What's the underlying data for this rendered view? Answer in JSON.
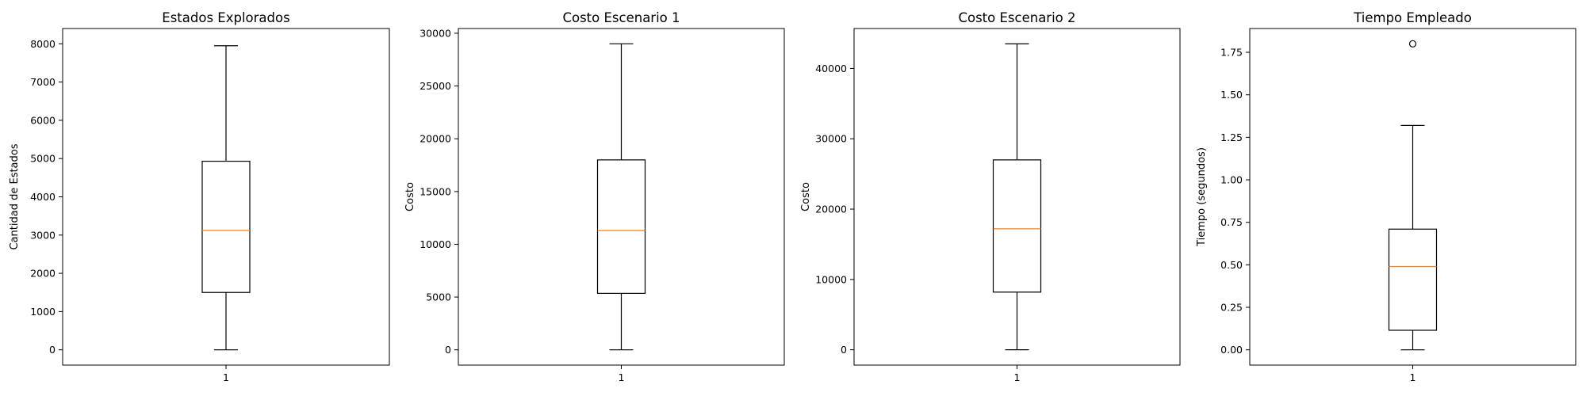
{
  "chart_data": [
    {
      "type": "box",
      "title": "Estados Explorados",
      "ylabel": "Cantidad de Estados",
      "xlabel": "",
      "categories": [
        "1"
      ],
      "ylim": [
        -400,
        8400
      ],
      "yticks": [
        0,
        1000,
        2000,
        3000,
        4000,
        5000,
        6000,
        7000,
        8000
      ],
      "ytick_labels": [
        "0",
        "1000",
        "2000",
        "3000",
        "4000",
        "5000",
        "6000",
        "7000",
        "8000"
      ],
      "box": {
        "whisker_low": 0,
        "q1": 1500,
        "median": 3120,
        "q3": 4930,
        "whisker_high": 7950,
        "outliers": []
      }
    },
    {
      "type": "box",
      "title": "Costo Escenario 1",
      "ylabel": "Costo",
      "xlabel": "",
      "categories": [
        "1"
      ],
      "ylim": [
        -1450,
        30450
      ],
      "yticks": [
        0,
        5000,
        10000,
        15000,
        20000,
        25000,
        30000
      ],
      "ytick_labels": [
        "0",
        "5000",
        "10000",
        "15000",
        "20000",
        "25000",
        "30000"
      ],
      "box": {
        "whisker_low": 0,
        "q1": 5350,
        "median": 11300,
        "q3": 18000,
        "whisker_high": 29000,
        "outliers": []
      }
    },
    {
      "type": "box",
      "title": "Costo Escenario 2",
      "ylabel": "Costo",
      "xlabel": "",
      "categories": [
        "1"
      ],
      "ylim": [
        -2180,
        45680
      ],
      "yticks": [
        0,
        10000,
        20000,
        30000,
        40000
      ],
      "ytick_labels": [
        "0",
        "10000",
        "20000",
        "30000",
        "40000"
      ],
      "box": {
        "whisker_low": 0,
        "q1": 8200,
        "median": 17200,
        "q3": 27000,
        "whisker_high": 43500,
        "outliers": []
      }
    },
    {
      "type": "box",
      "title": "Tiempo Empleado",
      "ylabel": "Tiempo (segundos)",
      "xlabel": "",
      "categories": [
        "1"
      ],
      "ylim": [
        -0.09,
        1.89
      ],
      "yticks": [
        0.0,
        0.25,
        0.5,
        0.75,
        1.0,
        1.25,
        1.5,
        1.75
      ],
      "ytick_labels": [
        "0.00",
        "0.25",
        "0.50",
        "0.75",
        "1.00",
        "1.25",
        "1.50",
        "1.75"
      ],
      "box": {
        "whisker_low": 0.0,
        "q1": 0.115,
        "median": 0.49,
        "q3": 0.71,
        "whisker_high": 1.32,
        "outliers": [
          1.8
        ]
      }
    }
  ],
  "colors": {
    "median": "#ff7f0e",
    "box": "#000000",
    "background": "#ffffff"
  }
}
